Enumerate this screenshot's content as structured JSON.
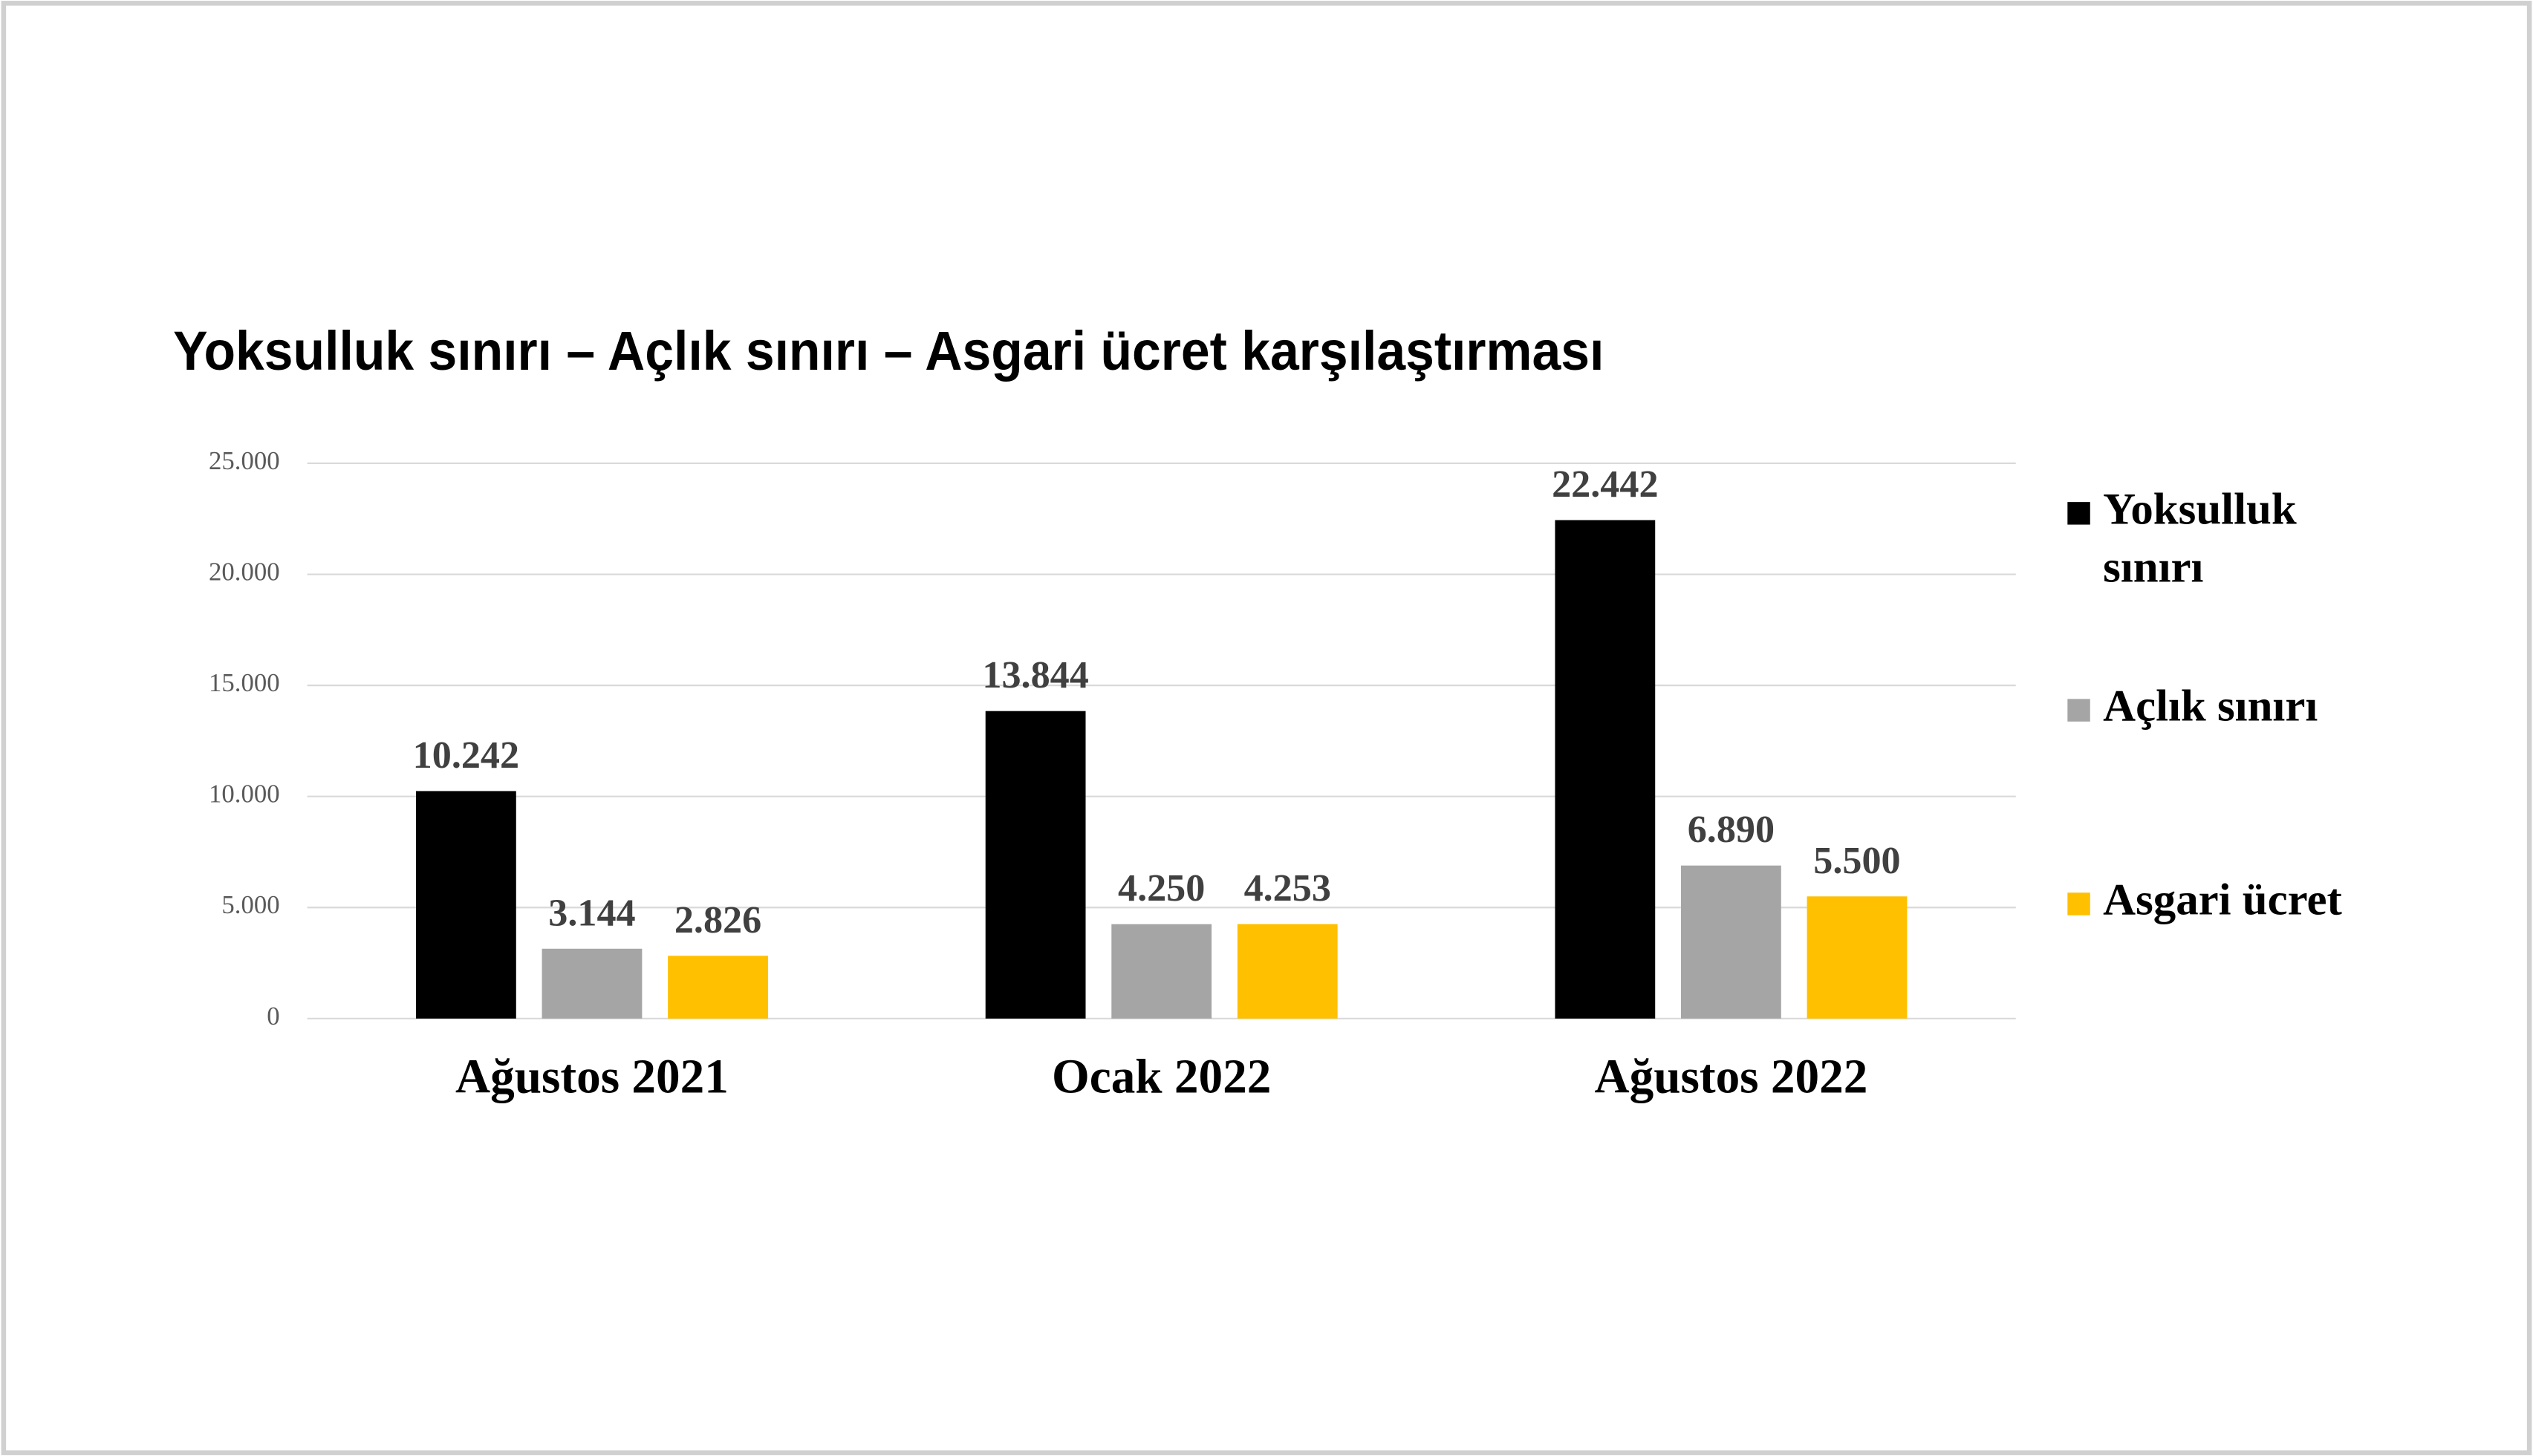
{
  "chart_data": {
    "type": "bar",
    "title": "Yoksulluk sınırı – Açlık sınırı – Asgari ücret karşılaştırması",
    "categories": [
      "Ağustos 2021",
      "Ocak 2022",
      "Ağustos 2022"
    ],
    "series": [
      {
        "name": "Yoksulluk sınırı",
        "color": "#000000",
        "values": [
          10242,
          13844,
          22442
        ],
        "value_labels": [
          "10.242",
          "13.844",
          "22.442"
        ]
      },
      {
        "name": "Açlık sınırı",
        "color": "#a5a5a5",
        "values": [
          3144,
          4250,
          6890
        ],
        "value_labels": [
          "3.144",
          "4.250",
          "6.890"
        ]
      },
      {
        "name": "Asgari ücret",
        "color": "#ffc000",
        "values": [
          2826,
          4253,
          5500
        ],
        "value_labels": [
          "2.826",
          "4.253",
          "5.500"
        ]
      }
    ],
    "ylim": [
      0,
      25000
    ],
    "yticks": [
      0,
      {
        "value": 5000,
        "label": "5.000"
      },
      {
        "value": 10000,
        "label": "10.000"
      },
      {
        "value": 15000,
        "label": "15.000"
      },
      {
        "value": 20000,
        "label": "20.000"
      },
      {
        "value": 25000,
        "label": "25.000"
      }
    ],
    "grid": true,
    "legend": "right"
  }
}
